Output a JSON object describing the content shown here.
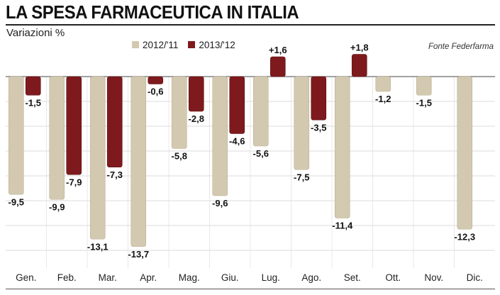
{
  "chart_data": {
    "type": "bar",
    "title": "LA SPESA FARMACEUTICA IN ITALIA",
    "subtitle": "Variazioni %",
    "source": "Fonte Federfarma",
    "categories": [
      "Gen.",
      "Feb.",
      "Mar.",
      "Apr.",
      "Mag.",
      "Giu.",
      "Lug.",
      "Ago.",
      "Set.",
      "Ott.",
      "Nov.",
      "Dic."
    ],
    "series": [
      {
        "name": "2012/'11",
        "color": "#d3c9b0",
        "values": [
          -9.5,
          -9.9,
          -13.1,
          -13.7,
          -5.8,
          -9.6,
          -5.6,
          -7.5,
          -11.4,
          -1.2,
          -1.5,
          -12.3
        ],
        "labels": [
          "-9,5",
          "-9,9",
          "-13,1",
          "-13,7",
          "-5,8",
          "-9,6",
          "-5,6",
          "-7,5",
          "-11,4",
          "-1,2",
          "-1,5",
          "-12,3"
        ]
      },
      {
        "name": "2013/'12",
        "color": "#7e1a1d",
        "values": [
          -1.5,
          -7.9,
          -7.3,
          -0.6,
          -2.8,
          -4.6,
          1.6,
          -3.5,
          1.8,
          null,
          null,
          null
        ],
        "labels": [
          "-1,5",
          "-7,9",
          "-7,3",
          "-0,6",
          "-2,8",
          "-4,6",
          "+1,6",
          "-3,5",
          "+1,8",
          null,
          null,
          null
        ]
      }
    ],
    "ylim": [
      -15,
      1.6
    ],
    "grid": true,
    "legend": "top-center"
  }
}
